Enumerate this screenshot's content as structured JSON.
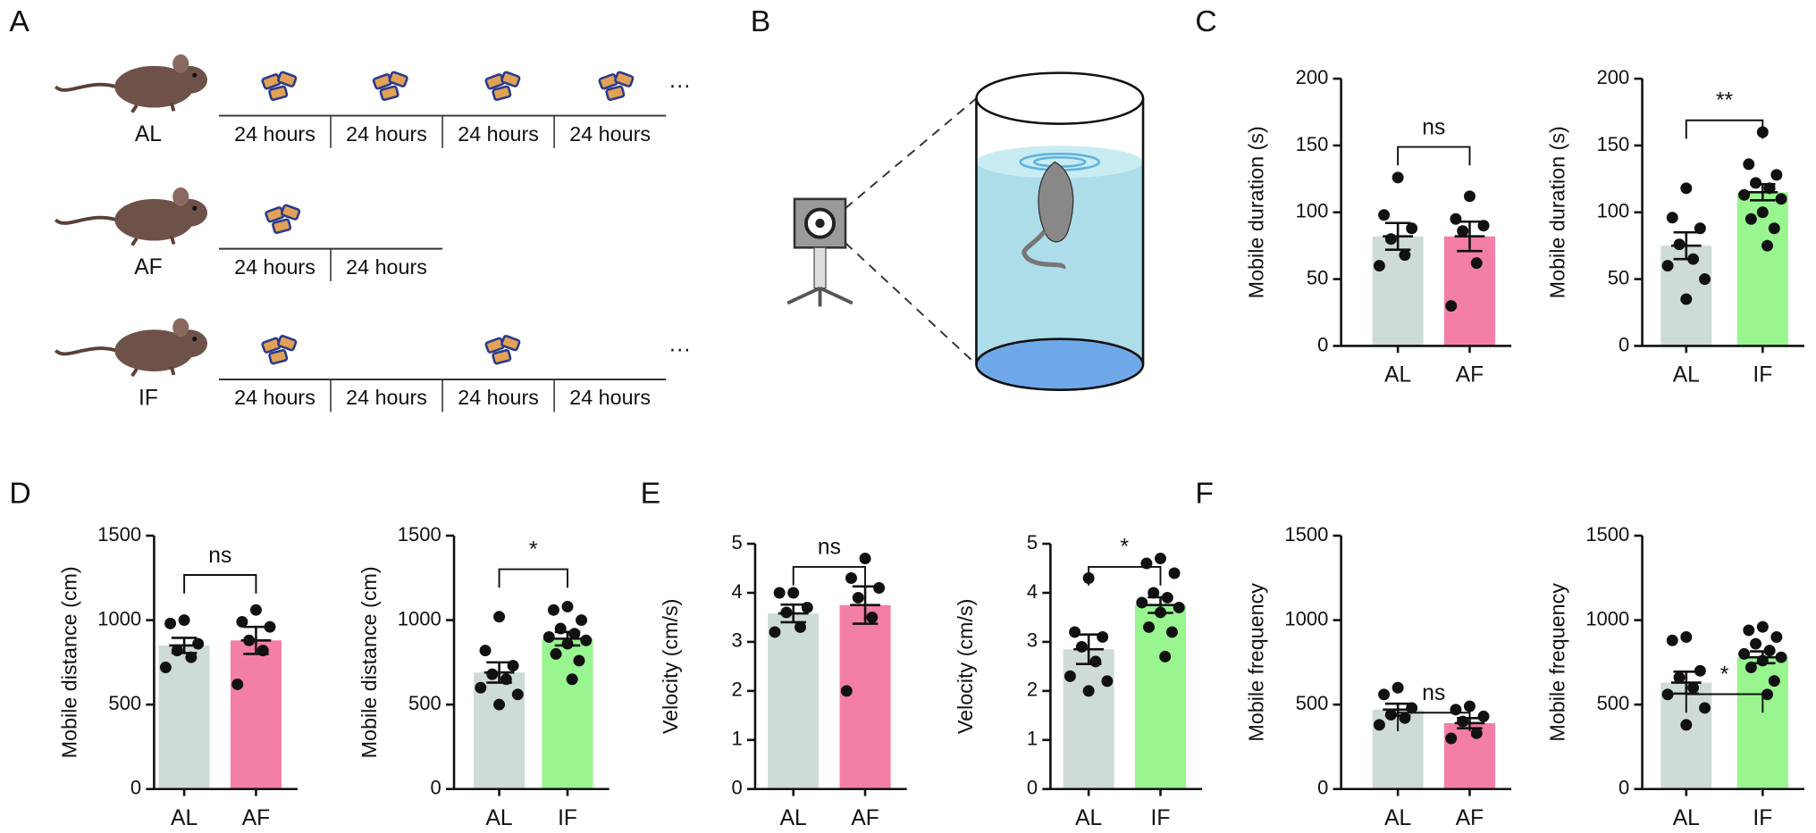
{
  "panels": [
    "A",
    "B",
    "C",
    "D",
    "E",
    "F"
  ],
  "panel_a": {
    "rows": [
      {
        "label": "AL",
        "segments": [
          "24 hours",
          "24 hours",
          "24 hours",
          "24 hours"
        ],
        "more": "···"
      },
      {
        "label": "AF",
        "segments": [
          "24 hours",
          "24 hours"
        ]
      },
      {
        "label": "IF",
        "segments": [
          "24 hours",
          "24 hours",
          "24 hours",
          "24 hours"
        ],
        "more": "···"
      }
    ]
  },
  "chart_data": [
    {
      "type": "bar",
      "ylabel": "Mobile duration (s)",
      "categories": [
        "AL",
        "AF"
      ],
      "colors": [
        "#cfdbd8",
        "#f37fa5"
      ],
      "values": [
        82,
        82
      ],
      "errors": [
        10,
        11
      ],
      "points": [
        [
          126,
          98,
          88,
          80,
          68,
          60
        ],
        [
          112,
          95,
          90,
          86,
          62,
          30
        ]
      ],
      "ylim": [
        0,
        200
      ],
      "yticks": [
        0,
        50,
        100,
        150,
        200
      ],
      "annotation": "ns"
    },
    {
      "type": "bar",
      "ylabel": "Mobile duration (s)",
      "categories": [
        "AL",
        "IF"
      ],
      "colors": [
        "#cfdbd8",
        "#98f58f"
      ],
      "values": [
        75,
        115
      ],
      "errors": [
        10,
        6
      ],
      "points": [
        [
          118,
          96,
          88,
          76,
          65,
          60,
          50,
          35
        ],
        [
          160,
          136,
          128,
          122,
          118,
          113,
          110,
          100,
          95,
          88,
          75
        ]
      ],
      "ylim": [
        0,
        200
      ],
      "yticks": [
        0,
        50,
        100,
        150,
        200
      ],
      "annotation": "**"
    },
    {
      "type": "bar",
      "ylabel": "Mobile distance (cm)",
      "categories": [
        "AL",
        "AF"
      ],
      "colors": [
        "#cfdbd8",
        "#f37fa5"
      ],
      "values": [
        850,
        880
      ],
      "errors": [
        45,
        80
      ],
      "points": [
        [
          1000,
          980,
          860,
          820,
          780,
          720
        ],
        [
          1060,
          990,
          960,
          880,
          820,
          620
        ]
      ],
      "ylim": [
        0,
        1500
      ],
      "yticks": [
        0,
        500,
        1000,
        1500
      ],
      "annotation": "ns"
    },
    {
      "type": "bar",
      "ylabel": "Mobile distance (cm)",
      "categories": [
        "AL",
        "IF"
      ],
      "colors": [
        "#cfdbd8",
        "#98f58f"
      ],
      "values": [
        690,
        890
      ],
      "errors": [
        60,
        40
      ],
      "points": [
        [
          1020,
          820,
          730,
          680,
          650,
          600,
          560,
          500
        ],
        [
          1080,
          1060,
          1000,
          950,
          920,
          900,
          880,
          860,
          800,
          760,
          650
        ]
      ],
      "ylim": [
        0,
        1500
      ],
      "yticks": [
        0,
        500,
        1000,
        1500
      ],
      "annotation": "*"
    },
    {
      "type": "bar",
      "ylabel": "Velocity (cm/s)",
      "categories": [
        "AL",
        "AF"
      ],
      "colors": [
        "#cfdbd8",
        "#f37fa5"
      ],
      "values": [
        3.58,
        3.75
      ],
      "errors": [
        0.18,
        0.38
      ],
      "points": [
        [
          4.0,
          4.0,
          3.7,
          3.6,
          3.3,
          3.2
        ],
        [
          4.7,
          4.3,
          4.1,
          3.9,
          3.5,
          2.0
        ]
      ],
      "ylim": [
        0,
        5
      ],
      "yticks": [
        0,
        1,
        2,
        3,
        4,
        5
      ],
      "annotation": "ns"
    },
    {
      "type": "bar",
      "ylabel": "Velocity (cm/s)",
      "categories": [
        "AL",
        "IF"
      ],
      "colors": [
        "#cfdbd8",
        "#98f58f"
      ],
      "values": [
        2.85,
        3.75
      ],
      "errors": [
        0.3,
        0.16
      ],
      "points": [
        [
          4.3,
          3.2,
          3.1,
          2.9,
          2.6,
          2.3,
          2.2,
          2.0
        ],
        [
          4.7,
          4.6,
          4.4,
          4.0,
          3.9,
          3.8,
          3.7,
          3.6,
          3.3,
          3.2,
          2.7
        ]
      ],
      "ylim": [
        0,
        5
      ],
      "yticks": [
        0,
        1,
        2,
        3,
        4,
        5
      ],
      "annotation": "*"
    },
    {
      "type": "bar",
      "ylabel": "Mobile frequency",
      "categories": [
        "AL",
        "AF"
      ],
      "colors": [
        "#cfdbd8",
        "#f37fa5"
      ],
      "values": [
        470,
        390
      ],
      "errors": [
        35,
        30
      ],
      "points": [
        [
          600,
          560,
          480,
          440,
          420,
          380
        ],
        [
          490,
          470,
          430,
          400,
          330,
          300
        ]
      ],
      "ylim": [
        0,
        1500
      ],
      "yticks": [
        0,
        500,
        1000,
        1500
      ],
      "annotation": "ns"
    },
    {
      "type": "bar",
      "ylabel": "Mobile frequency",
      "categories": [
        "AL",
        "IF"
      ],
      "colors": [
        "#cfdbd8",
        "#98f58f"
      ],
      "values": [
        630,
        780
      ],
      "errors": [
        65,
        35
      ],
      "points": [
        [
          900,
          880,
          700,
          660,
          600,
          560,
          480,
          380
        ],
        [
          960,
          940,
          900,
          860,
          820,
          800,
          780,
          760,
          720,
          640,
          560
        ]
      ],
      "ylim": [
        0,
        1500
      ],
      "yticks": [
        0,
        500,
        1000,
        1500
      ],
      "annotation": "*"
    }
  ]
}
